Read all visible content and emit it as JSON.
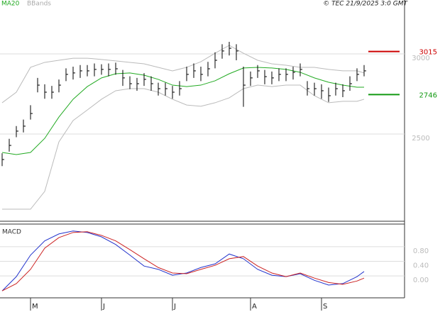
{
  "chart_data": [
    {
      "type": "ohlc",
      "legend_texts": [
        "MA20",
        "BBands"
      ],
      "credit": "© TEC 21/9/2025 3:0 GMT",
      "color": "#000000",
      "x": [
        0,
        1,
        2,
        3,
        4,
        5,
        6,
        7,
        8,
        9,
        10,
        11,
        12,
        13,
        14,
        15,
        16,
        17,
        18,
        19,
        20,
        21,
        22,
        23,
        24,
        25,
        26,
        27,
        28,
        29,
        30,
        31,
        32,
        33,
        34,
        35,
        36,
        37,
        38,
        39,
        40,
        41,
        42,
        43,
        44,
        45,
        46,
        47,
        48,
        49,
        50,
        51
      ],
      "high": [
        2380,
        2470,
        2550,
        2590,
        2680,
        2850,
        2810,
        2800,
        2840,
        2910,
        2920,
        2930,
        2930,
        2940,
        2935,
        2940,
        2945,
        2900,
        2860,
        2850,
        2880,
        2860,
        2820,
        2820,
        2800,
        2830,
        2920,
        2940,
        2920,
        2950,
        3010,
        3060,
        3075,
        3060,
        2920,
        2890,
        2930,
        2900,
        2890,
        2910,
        2910,
        2920,
        2940,
        2830,
        2820,
        2810,
        2790,
        2820,
        2810,
        2860,
        2910,
        2930
      ],
      "low": [
        2300,
        2390,
        2480,
        2510,
        2590,
        2760,
        2720,
        2720,
        2760,
        2830,
        2840,
        2850,
        2860,
        2860,
        2870,
        2860,
        2870,
        2800,
        2780,
        2770,
        2800,
        2770,
        2740,
        2740,
        2720,
        2740,
        2830,
        2850,
        2830,
        2860,
        2910,
        2970,
        2990,
        2960,
        2670,
        2800,
        2850,
        2810,
        2810,
        2830,
        2830,
        2840,
        2860,
        2740,
        2740,
        2720,
        2700,
        2740,
        2730,
        2770,
        2830,
        2860
      ],
      "close": [
        2341,
        2429,
        2518,
        2549,
        2628,
        2805,
        2761,
        2761,
        2805,
        2872,
        2881,
        2894,
        2894,
        2903,
        2903,
        2903,
        2907,
        2850,
        2814,
        2814,
        2841,
        2814,
        2783,
        2783,
        2761,
        2783,
        2872,
        2894,
        2872,
        2907,
        2960,
        3018,
        3035,
        3018,
        2805,
        2850,
        2894,
        2858,
        2850,
        2872,
        2872,
        2885,
        2903,
        2783,
        2783,
        2770,
        2739,
        2783,
        2770,
        2814,
        2872,
        2894
      ],
      "indicators": {
        "x": [
          0,
          2,
          4,
          6,
          8,
          10,
          12,
          14,
          16,
          18,
          20,
          22,
          24,
          26,
          28,
          30,
          32,
          34,
          36,
          38,
          40,
          42,
          44,
          46,
          48,
          50,
          51
        ],
        "ma20": {
          "name": "MA20",
          "color": "#22aa22",
          "values": [
            2385,
            2372,
            2385,
            2473,
            2606,
            2717,
            2796,
            2850,
            2876,
            2881,
            2867,
            2841,
            2805,
            2796,
            2805,
            2832,
            2876,
            2912,
            2916,
            2912,
            2903,
            2885,
            2850,
            2823,
            2805,
            2792,
            2792
          ]
        },
        "bbands": {
          "name": "BBands",
          "color": "#bbbbbb",
          "upper": [
            2695,
            2761,
            2916,
            2947,
            2960,
            2973,
            2973,
            2965,
            2956,
            2947,
            2938,
            2916,
            2894,
            2916,
            2951,
            3004,
            3053,
            3004,
            2960,
            2938,
            2929,
            2916,
            2916,
            2903,
            2894,
            2894,
            2881
          ],
          "lower": [
            2031,
            2031,
            2031,
            2142,
            2451,
            2584,
            2650,
            2717,
            2770,
            2783,
            2783,
            2761,
            2717,
            2681,
            2673,
            2695,
            2726,
            2783,
            2805,
            2796,
            2805,
            2805,
            2739,
            2695,
            2704,
            2704,
            2717
          ]
        }
      },
      "levels": [
        {
          "value": 3015,
          "color": "#cc0000"
        },
        {
          "value": 2746,
          "color": "#119911"
        }
      ],
      "xlim": [
        -0.3,
        56.7
      ],
      "ylim": [
        1956,
        3336
      ],
      "yticks": [
        2500,
        3000
      ],
      "grid": true
    },
    {
      "type": "line",
      "title": "MACD",
      "x": [
        0,
        2,
        4,
        6,
        8,
        10,
        12,
        14,
        16,
        18,
        20,
        22,
        24,
        26,
        28,
        30,
        32,
        34,
        36,
        38,
        40,
        42,
        44,
        46,
        48,
        50,
        51
      ],
      "series": [
        {
          "color": "#2233cc",
          "values": [
            -0.41,
            -0.02,
            0.57,
            0.96,
            1.15,
            1.23,
            1.19,
            1.07,
            0.86,
            0.57,
            0.27,
            0.18,
            0.02,
            0.08,
            0.23,
            0.33,
            0.6,
            0.47,
            0.18,
            0.02,
            -0.02,
            0.06,
            -0.12,
            -0.25,
            -0.21,
            -0.02,
            0.12
          ]
        },
        {
          "color": "#cc2222",
          "values": [
            -0.41,
            -0.21,
            0.18,
            0.76,
            1.05,
            1.19,
            1.21,
            1.11,
            0.96,
            0.72,
            0.47,
            0.23,
            0.08,
            0.06,
            0.18,
            0.29,
            0.47,
            0.53,
            0.27,
            0.08,
            -0.02,
            0.08,
            -0.06,
            -0.18,
            -0.23,
            -0.14,
            -0.06
          ]
        }
      ],
      "xlim": [
        -0.3,
        56.7
      ],
      "ylim": [
        -0.6,
        1.42
      ],
      "yticks": [
        {
          "value": 0,
          "label": "0.00"
        },
        {
          "value": 0.4,
          "label": "0.40"
        },
        {
          "value": 0.8,
          "label": "0.80"
        }
      ],
      "xticks": [
        {
          "value": 4,
          "label": "M"
        },
        {
          "value": 14,
          "label": "J"
        },
        {
          "value": 24,
          "label": "J"
        },
        {
          "value": 35,
          "label": "A"
        },
        {
          "value": 45,
          "label": "S"
        }
      ],
      "grid": true
    }
  ]
}
